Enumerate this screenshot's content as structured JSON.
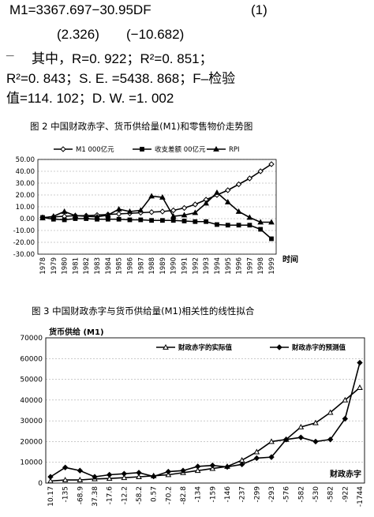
{
  "equation": {
    "main": "M1=3367.697−30.95DF",
    "main_number": "(1)",
    "t_left": "(2.326)",
    "t_right": "(−10.682)",
    "dash": "_",
    "line3": "其中，R=0. 922；R²=0. 851；",
    "line4": "R²=0. 843；S. E. =5438. 868；F–检验",
    "line5": "值=114. 102；D. W. =1. 002"
  },
  "figure2": {
    "caption": "图 2    中国财政赤字、货币供给量(M1)和零售物价走势图",
    "x_title": "时间"
  },
  "figure3": {
    "caption": "图 3    中国财政赤字与货币供给量(M1)相关性的线性拟合",
    "y_title": "货币供给 (M1)",
    "x_title": "财政赤字"
  },
  "chart_data": [
    {
      "type": "line",
      "title": "",
      "xlabel": "时间",
      "ylabel": "",
      "ylim": [
        -30,
        50
      ],
      "yticks": [
        "50.00",
        "40.00",
        "30.00",
        "20.00",
        "10.00",
        "0.00",
        "-10.00",
        "-20.00",
        "-30.00"
      ],
      "legend_position": "top",
      "categories": [
        "1978",
        "1979",
        "1980",
        "1981",
        "1982",
        "1983",
        "1984",
        "1985",
        "1986",
        "1987",
        "1988",
        "1989",
        "1990",
        "1991",
        "1992",
        "1993",
        "1994",
        "1995",
        "1996",
        "1997",
        "1998",
        "1999"
      ],
      "series": [
        {
          "name": "M1 000亿元",
          "marker": "diamond",
          "values": [
            1,
            1.5,
            2,
            2.5,
            2.5,
            3,
            3.5,
            4,
            4.5,
            5,
            5.5,
            6,
            7,
            9,
            12,
            16,
            20,
            24,
            29,
            34,
            40,
            46
          ]
        },
        {
          "name": "收支差额 00亿元",
          "marker": "square",
          "values": [
            1,
            -0.5,
            -1,
            0,
            0,
            -0.5,
            -0.5,
            -0.5,
            -1,
            -1,
            -1.5,
            -1.5,
            -1.5,
            -2,
            -2.5,
            -2.5,
            -5,
            -5.5,
            -5.5,
            -5.5,
            -9,
            -17
          ]
        },
        {
          "name": "RPI",
          "marker": "triangle",
          "values": [
            0.5,
            2,
            6,
            2.5,
            2,
            1.5,
            3,
            8,
            6,
            7,
            19,
            18,
            2,
            3,
            5,
            13,
            22,
            14,
            6,
            1,
            -3,
            -3
          ]
        }
      ]
    },
    {
      "type": "line",
      "title": "",
      "xlabel": "财政赤字",
      "ylabel": "货币供给 (M1)",
      "ylim": [
        0,
        70000
      ],
      "yticks": [
        "70000",
        "60000",
        "50000",
        "40000",
        "30000",
        "20000",
        "10000",
        "0"
      ],
      "legend_position": "top",
      "categories": [
        "10.17",
        "-135",
        "-68.9",
        "37.38",
        "-17.6",
        "-12.2",
        "-58.2",
        "0.57",
        "-70.2",
        "-82.8",
        "-134",
        "-159",
        "-146",
        "-237",
        "-299",
        "-293",
        "-576",
        "-582",
        "-530",
        "-582",
        "-922",
        "-1744"
      ],
      "series": [
        {
          "name": "财政赤字的实际值",
          "marker": "triangle",
          "values": [
            1000,
            1500,
            1500,
            2000,
            2200,
            2600,
            3000,
            3500,
            4000,
            5000,
            6000,
            7000,
            8000,
            11000,
            15000,
            20000,
            21000,
            27000,
            29000,
            34000,
            40000,
            46000
          ]
        },
        {
          "name": "财政赤字的预测值",
          "marker": "diamond",
          "values": [
            3000,
            7500,
            6000,
            3000,
            4000,
            4500,
            5000,
            3200,
            5500,
            6000,
            8000,
            8500,
            7800,
            9000,
            12000,
            12500,
            21000,
            22000,
            20000,
            21000,
            31000,
            58000
          ]
        }
      ]
    }
  ]
}
